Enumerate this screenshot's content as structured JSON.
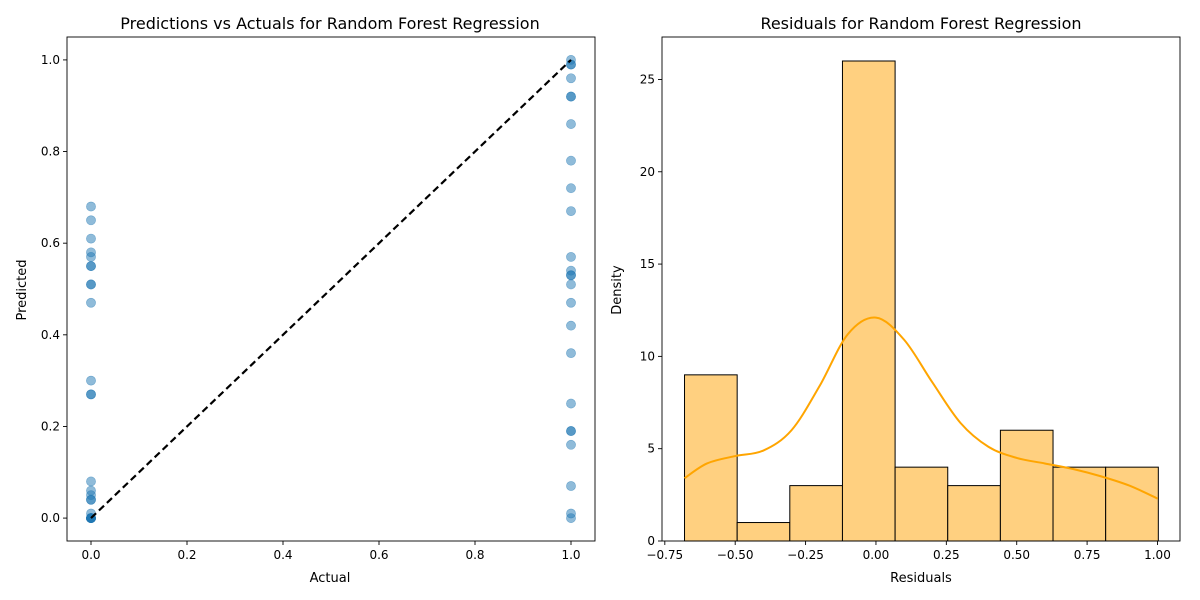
{
  "chart_data": [
    {
      "type": "scatter",
      "title": "Predictions vs Actuals for Random Forest Regression",
      "xlabel": "Actual",
      "ylabel": "Predicted",
      "xlim": [
        -0.05,
        1.05
      ],
      "ylim": [
        -0.05,
        1.05
      ],
      "xticks": [
        0.0,
        0.2,
        0.4,
        0.6,
        0.8,
        1.0
      ],
      "yticks": [
        0.0,
        0.2,
        0.4,
        0.6,
        0.8,
        1.0
      ],
      "xtick_labels": [
        "0.0",
        "0.2",
        "0.4",
        "0.6",
        "0.8",
        "1.0"
      ],
      "ytick_labels": [
        "0.0",
        "0.2",
        "0.4",
        "0.6",
        "0.8",
        "1.0"
      ],
      "grid": false,
      "point_color": "#1f77b4",
      "point_alpha": 0.5,
      "reference_line": {
        "from": [
          0,
          0
        ],
        "to": [
          1,
          1
        ],
        "style": "dashed",
        "color": "#000000"
      },
      "points": [
        {
          "x": 0,
          "y": 0.68
        },
        {
          "x": 0,
          "y": 0.65
        },
        {
          "x": 0,
          "y": 0.61
        },
        {
          "x": 0,
          "y": 0.58
        },
        {
          "x": 0,
          "y": 0.57
        },
        {
          "x": 0,
          "y": 0.55
        },
        {
          "x": 0,
          "y": 0.55
        },
        {
          "x": 0,
          "y": 0.51
        },
        {
          "x": 0,
          "y": 0.51
        },
        {
          "x": 0,
          "y": 0.47
        },
        {
          "x": 0,
          "y": 0.3
        },
        {
          "x": 0,
          "y": 0.27
        },
        {
          "x": 0,
          "y": 0.27
        },
        {
          "x": 0,
          "y": 0.08
        },
        {
          "x": 0,
          "y": 0.06
        },
        {
          "x": 0,
          "y": 0.05
        },
        {
          "x": 0,
          "y": 0.04
        },
        {
          "x": 0,
          "y": 0.04
        },
        {
          "x": 0,
          "y": 0.01
        },
        {
          "x": 0,
          "y": 0.0
        },
        {
          "x": 0,
          "y": 0.0
        },
        {
          "x": 0,
          "y": 0.0
        },
        {
          "x": 0,
          "y": 0.0
        },
        {
          "x": 0,
          "y": 0.0
        },
        {
          "x": 0,
          "y": 0.0
        },
        {
          "x": 0,
          "y": 0.0
        },
        {
          "x": 0,
          "y": 0.0
        },
        {
          "x": 0,
          "y": 0.0
        },
        {
          "x": 1,
          "y": 1.0
        },
        {
          "x": 1,
          "y": 0.99
        },
        {
          "x": 1,
          "y": 0.99
        },
        {
          "x": 1,
          "y": 0.96
        },
        {
          "x": 1,
          "y": 0.92
        },
        {
          "x": 1,
          "y": 0.92
        },
        {
          "x": 1,
          "y": 0.86
        },
        {
          "x": 1,
          "y": 0.78
        },
        {
          "x": 1,
          "y": 0.72
        },
        {
          "x": 1,
          "y": 0.67
        },
        {
          "x": 1,
          "y": 0.57
        },
        {
          "x": 1,
          "y": 0.54
        },
        {
          "x": 1,
          "y": 0.53
        },
        {
          "x": 1,
          "y": 0.53
        },
        {
          "x": 1,
          "y": 0.51
        },
        {
          "x": 1,
          "y": 0.47
        },
        {
          "x": 1,
          "y": 0.42
        },
        {
          "x": 1,
          "y": 0.36
        },
        {
          "x": 1,
          "y": 0.25
        },
        {
          "x": 1,
          "y": 0.19
        },
        {
          "x": 1,
          "y": 0.19
        },
        {
          "x": 1,
          "y": 0.16
        },
        {
          "x": 1,
          "y": 0.07
        },
        {
          "x": 1,
          "y": 0.01
        },
        {
          "x": 1,
          "y": 0.0
        }
      ]
    },
    {
      "type": "bar",
      "subtype": "histogram_with_kde",
      "title": "Residuals for Random Forest Regression",
      "xlabel": "Residuals",
      "ylabel": "Density",
      "xlim": [
        -0.76,
        1.08
      ],
      "ylim": [
        0,
        27.3
      ],
      "xticks": [
        -0.75,
        -0.5,
        -0.25,
        0.0,
        0.25,
        0.5,
        0.75,
        1.0
      ],
      "xtick_labels": [
        "−0.75",
        "−0.50",
        "−0.25",
        "0.00",
        "0.25",
        "0.50",
        "0.75",
        "1.00"
      ],
      "yticks": [
        0,
        5,
        10,
        15,
        20,
        25
      ],
      "ytick_labels": [
        "0",
        "5",
        "10",
        "15",
        "20",
        "25"
      ],
      "grid": false,
      "bar_color": "#ffd080",
      "bar_edge_color": "#000000",
      "kde_color": "#ffa500",
      "bin_edges": [
        -0.68,
        -0.493,
        -0.306,
        -0.119,
        0.068,
        0.255,
        0.442,
        0.629,
        0.816,
        1.003
      ],
      "values": [
        9,
        1,
        3,
        26,
        4,
        3,
        6,
        4,
        4
      ],
      "kde": {
        "x": [
          -0.68,
          -0.6,
          -0.5,
          -0.4,
          -0.3,
          -0.2,
          -0.1,
          0.0,
          0.1,
          0.2,
          0.3,
          0.4,
          0.5,
          0.6,
          0.7,
          0.8,
          0.9,
          1.0
        ],
        "y": [
          3.4,
          4.2,
          4.6,
          4.9,
          6.0,
          8.4,
          11.2,
          12.1,
          10.9,
          8.6,
          6.4,
          5.1,
          4.5,
          4.2,
          3.9,
          3.5,
          3.0,
          2.3
        ]
      }
    }
  ]
}
